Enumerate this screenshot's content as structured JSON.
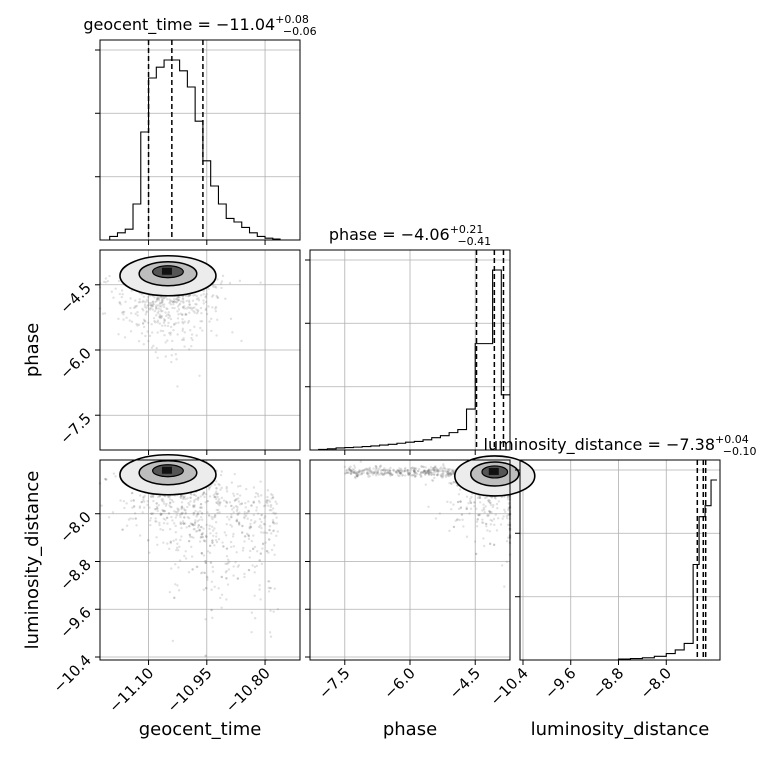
{
  "chart_data": {
    "type": "corner",
    "parameters": [
      "geocent_time",
      "phase",
      "luminosity_distance"
    ],
    "axis_labels": {
      "geocent_time": "geocent_time",
      "phase": "phase",
      "luminosity_distance": "luminosity_distance"
    },
    "titles": {
      "geocent_time": {
        "main": "geocent_time = −11.04",
        "plus": "+0.08",
        "minus": "−0.06"
      },
      "phase": {
        "main": "phase = −4.06",
        "plus": "+0.21",
        "minus": "−0.41"
      },
      "luminosity_distance": {
        "main": "luminosity_distance = −7.38",
        "plus": "+0.04",
        "minus": "−0.10"
      }
    },
    "ranges": {
      "geocent_time": [
        -11.225,
        -10.71
      ],
      "phase": [
        -8.3,
        -3.7
      ],
      "luminosity_distance": [
        -10.45,
        -7.1
      ]
    },
    "ticks": {
      "geocent_time": [
        {
          "value": -11.1,
          "label": "−11.10"
        },
        {
          "value": -10.95,
          "label": "−10.95"
        },
        {
          "value": -10.8,
          "label": "−10.80"
        }
      ],
      "phase": [
        {
          "value": -7.5,
          "label": "−7.5"
        },
        {
          "value": -6.0,
          "label": "−6.0"
        },
        {
          "value": -4.5,
          "label": "−4.5"
        }
      ],
      "luminosity_distance": [
        {
          "value": -10.4,
          "label": "−10.4"
        },
        {
          "value": -9.6,
          "label": "−9.6"
        },
        {
          "value": -8.8,
          "label": "−8.8"
        },
        {
          "value": -8.0,
          "label": "−8.0"
        }
      ]
    },
    "quantiles": {
      "geocent_time": [
        -11.1,
        -11.04,
        -10.96
      ],
      "phase": [
        -4.47,
        -4.06,
        -3.85
      ],
      "luminosity_distance": [
        -7.48,
        -7.38,
        -7.34
      ]
    },
    "histograms": {
      "geocent_time": {
        "edges": [
          -11.2,
          -11.18,
          -11.16,
          -11.14,
          -11.12,
          -11.1,
          -11.08,
          -11.06,
          -11.04,
          -11.02,
          -11.0,
          -10.98,
          -10.96,
          -10.94,
          -10.92,
          -10.9,
          -10.88,
          -10.86,
          -10.84,
          -10.82,
          -10.8,
          -10.78,
          -10.76
        ],
        "counts": [
          0.02,
          0.04,
          0.06,
          0.2,
          0.6,
          0.9,
          0.96,
          1.0,
          1.0,
          0.94,
          0.85,
          0.66,
          0.44,
          0.3,
          0.2,
          0.12,
          0.1,
          0.07,
          0.04,
          0.02,
          0.01,
          0.005
        ]
      },
      "phase": {
        "edges": [
          -8.3,
          -8.1,
          -7.9,
          -7.7,
          -7.5,
          -7.3,
          -7.1,
          -6.9,
          -6.7,
          -6.5,
          -6.3,
          -6.1,
          -5.9,
          -5.7,
          -5.5,
          -5.3,
          -5.1,
          -4.9,
          -4.7,
          -4.5,
          -4.1,
          -3.9,
          -3.7
        ],
        "counts": [
          0.0,
          0.003,
          0.006,
          0.01,
          0.012,
          0.014,
          0.017,
          0.02,
          0.024,
          0.028,
          0.033,
          0.038,
          0.042,
          0.05,
          0.06,
          0.07,
          0.085,
          0.1,
          0.2,
          0.52,
          0.88,
          0.27
        ]
      },
      "luminosity_distance": {
        "edges": [
          -8.8,
          -8.6,
          -8.4,
          -8.2,
          -8.0,
          -7.85,
          -7.7,
          -7.55,
          -7.45,
          -7.35,
          -7.25,
          -7.15
        ],
        "counts": [
          0.005,
          0.008,
          0.012,
          0.02,
          0.035,
          0.055,
          0.09,
          0.52,
          0.78,
          0.84,
          0.98
        ]
      }
    },
    "density_modes": {
      "geocent_time_vs_phase": [
        -11.05,
        -4.2
      ],
      "geocent_time_vs_luminosity_distance": [
        -11.05,
        -7.28
      ],
      "phase_vs_luminosity_distance": [
        -4.05,
        -7.3
      ]
    },
    "grid": true
  }
}
